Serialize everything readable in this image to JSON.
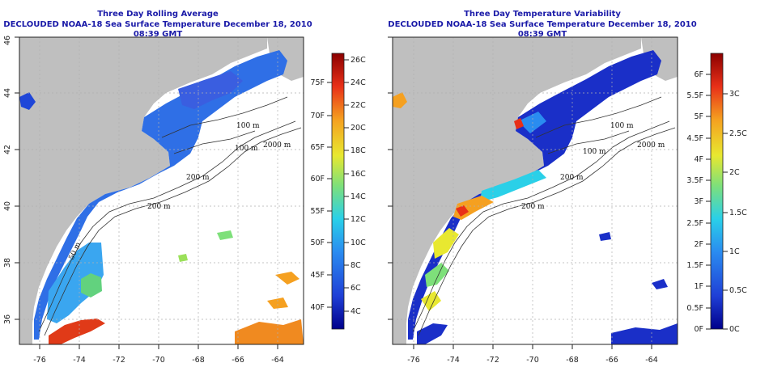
{
  "panels": [
    {
      "title_line1": "Three Day Rolling Average",
      "title_line2": "DECLOUDED NOAA-18 Sea Surface Temperature December 18, 2010 08:39 GMT",
      "x_ticks": [
        "-76",
        "-74",
        "-72",
        "-70",
        "-68",
        "-66",
        "-64"
      ],
      "y_ticks": [
        "36",
        "38",
        "40",
        "42",
        "44",
        "46"
      ],
      "contour_labels": [
        "100 m",
        "100 m",
        "200 m",
        "200 m",
        "50 m",
        "2000 m"
      ],
      "colorbar": {
        "left_labels": [
          "40F",
          "45F",
          "50F",
          "55F",
          "60F",
          "65F",
          "70F",
          "75F"
        ],
        "right_labels": [
          "4C",
          "6C",
          "8C",
          "10C",
          "12C",
          "14C",
          "16C",
          "18C",
          "20C",
          "22C",
          "24C",
          "26C"
        ]
      }
    },
    {
      "title_line1": "Three Day Temperature Variability",
      "title_line2": "DECLOUDED NOAA-18 Sea Surface Temperature December 18, 2010 08:39 GMT",
      "x_ticks": [
        "-76",
        "-74",
        "-72",
        "-70",
        "-68",
        "-66",
        "-64"
      ],
      "y_ticks": [
        "36",
        "38",
        "40",
        "42",
        "44",
        "46"
      ],
      "contour_labels": [
        "100 m",
        "100 m",
        "200 m",
        "200 m",
        "2000 m"
      ],
      "colorbar": {
        "left_labels": [
          "0F",
          "0.5F",
          "1F",
          "1.5F",
          "2F",
          "2.5F",
          "3F",
          "3.5F",
          "4F",
          "4.5F",
          "5F",
          "5.5F",
          "6F"
        ],
        "right_labels": [
          "0C",
          "0.5C",
          "1C",
          "1.5C",
          "2C",
          "2.5C",
          "3C"
        ]
      }
    }
  ],
  "colors": {
    "land": "#bfbfbf",
    "ocean_nodata": "#ffffff",
    "title": "#1a1aa8",
    "grid": "#b0b0b0"
  }
}
